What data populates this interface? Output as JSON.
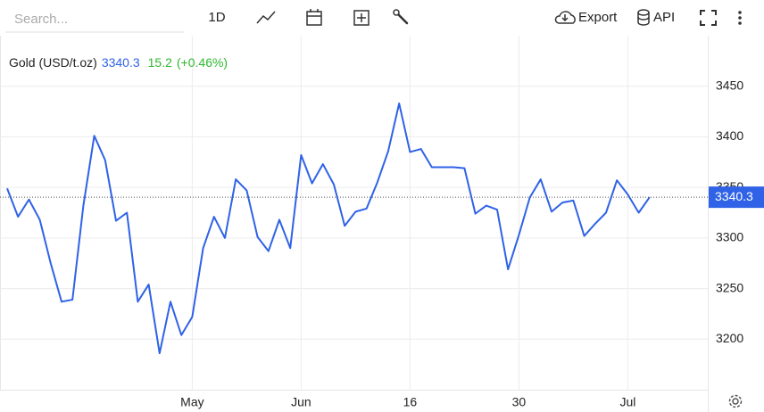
{
  "toolbar": {
    "search_placeholder": "Search...",
    "interval": "1D",
    "export": "Export",
    "api": "API"
  },
  "chart_data": {
    "type": "line",
    "series": [
      {
        "name": "Gold (USD/t.oz)",
        "color": "#2f62e6",
        "values": [
          3349,
          3321,
          3338,
          3318,
          3275,
          3237,
          3239,
          3332,
          3401,
          3377,
          3317,
          3325,
          3237,
          3254,
          3186,
          3237,
          3204,
          3222,
          3290,
          3321,
          3300,
          3358,
          3347,
          3301,
          3287,
          3318,
          3290,
          3382,
          3354,
          3373,
          3353,
          3312,
          3326,
          3329,
          3355,
          3386,
          3433,
          3385,
          3388,
          3370,
          3370,
          3370,
          3369,
          3324,
          3332,
          3328,
          3269,
          3303,
          3340,
          3358,
          3326,
          3335,
          3337,
          3302,
          3314,
          3325,
          3357,
          3343,
          3325,
          3340.3
        ]
      }
    ],
    "change": 15.2,
    "change_pct": "(+0.46%)",
    "change_color": "#2eb82e",
    "categories": [
      null,
      null,
      null,
      null,
      null,
      null,
      null,
      null,
      null,
      null,
      null,
      null,
      null,
      null,
      null,
      null,
      null,
      "May",
      null,
      null,
      null,
      null,
      null,
      null,
      null,
      null,
      null,
      "Jun",
      null,
      null,
      null,
      null,
      null,
      null,
      null,
      null,
      null,
      "16",
      null,
      null,
      null,
      null,
      null,
      null,
      null,
      null,
      null,
      "30",
      null,
      null,
      null,
      null,
      null,
      null,
      null,
      null,
      null,
      "Jul",
      null,
      null
    ],
    "ylim": [
      3150,
      3500
    ],
    "yticks": [
      3200,
      3250,
      3300,
      3350,
      3400,
      3450
    ],
    "grid": true
  }
}
